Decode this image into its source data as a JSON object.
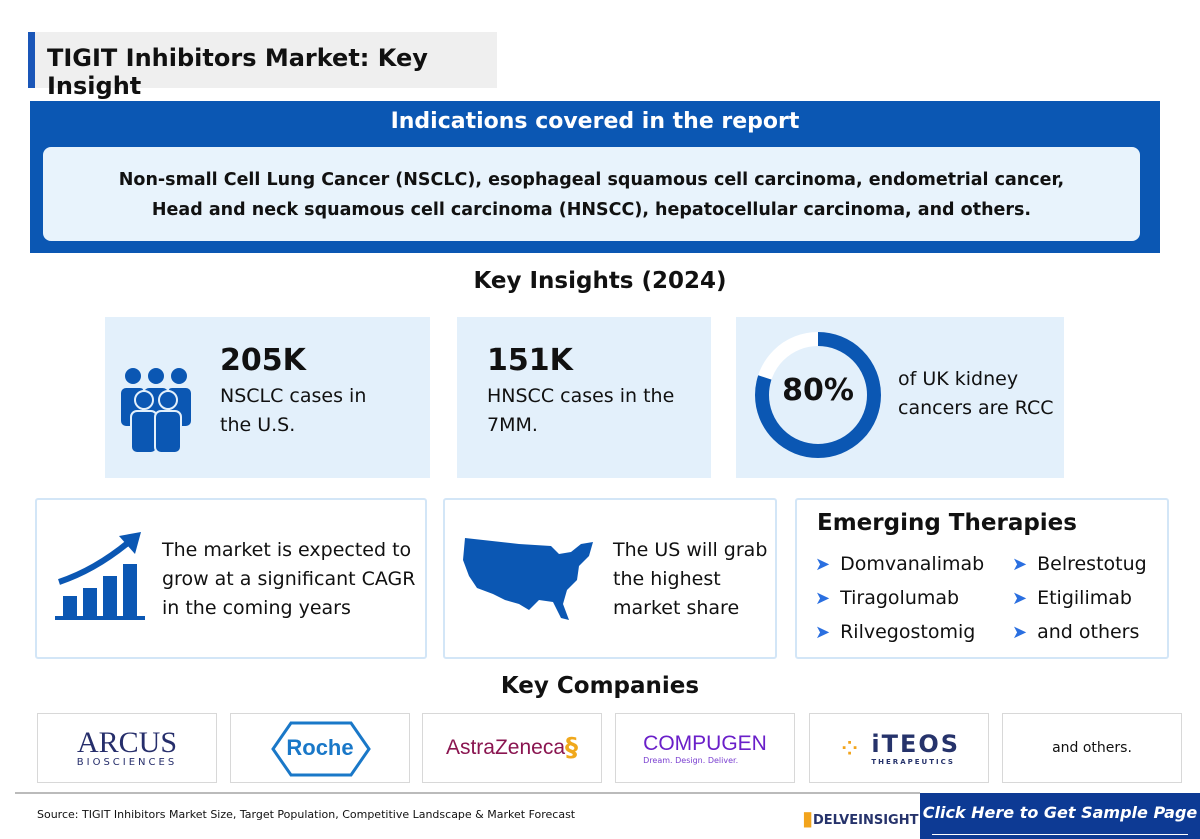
{
  "title": "TIGIT Inhibitors Market: Key Insight",
  "indications": {
    "heading": "Indications covered in the report",
    "line1": "Non-small Cell Lung Cancer (NSCLC), esophageal squamous cell carcinoma, endometrial cancer,",
    "line2": "Head and neck squamous cell carcinoma (HNSCC), hepatocellular carcinoma, and others."
  },
  "key_insights": {
    "heading": "Key Insights (2024)",
    "stat1": {
      "value": "205K",
      "label": "NSCLC cases in the U.S."
    },
    "stat2": {
      "value": "151K",
      "label": "HNSCC cases in the 7MM."
    },
    "stat3": {
      "value": "80%",
      "percent": 80,
      "label": "of UK kidney cancers are RCC"
    },
    "market": "The market is expected to grow at a significant CAGR in the coming years",
    "us": "The US will grab the highest market share"
  },
  "emerging": {
    "heading": "Emerging Therapies",
    "items": [
      "Domvanalimab",
      "Tiragolumab",
      "Rilvegostomig",
      "Belrestotug",
      "Etigilimab",
      "and others"
    ]
  },
  "companies": {
    "heading": "Key Companies",
    "logos": [
      "ARCUS",
      "BIOSCIENCES",
      "Roche",
      "AstraZeneca",
      "COMPUGEN",
      "Dream. Design. Deliver.",
      "iTEOS",
      "THERAPEUTICS"
    ],
    "others": "and others."
  },
  "footer": {
    "source": "Source: TIGIT Inhibitors Market Size, Target Population, Competitive Landscape & Market Forecast",
    "brand": "DELVEINSIGHT",
    "cta": "Click Here to Get Sample Page"
  },
  "colors": {
    "primary": "#0b57b3",
    "card": "#e3f0fb",
    "cta": "#0d3a94"
  }
}
